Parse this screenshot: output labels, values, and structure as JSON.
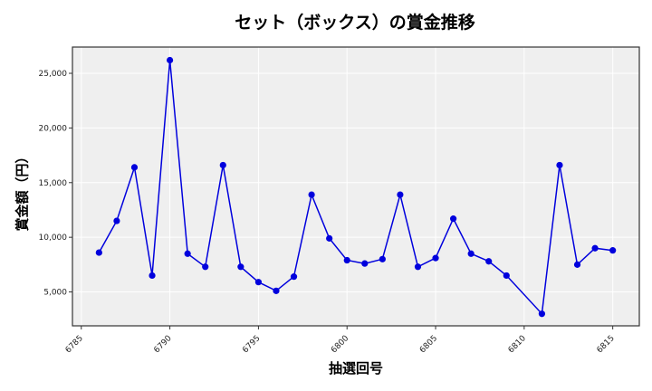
{
  "chart_data": {
    "type": "line",
    "title": "セット（ボックス）の賞金推移",
    "xlabel": "抽選回号",
    "ylabel": "賞金額（円）",
    "xlim": [
      6784.5,
      6816.5
    ],
    "ylim": [
      1900,
      27400
    ],
    "x_ticks": [
      6785,
      6790,
      6795,
      6800,
      6805,
      6810,
      6815
    ],
    "y_ticks": [
      5000,
      10000,
      15000,
      20000,
      25000
    ],
    "y_tick_labels": [
      "5,000",
      "10,000",
      "15,000",
      "20,000",
      "25,000"
    ],
    "grid": true,
    "legend": null,
    "series": [
      {
        "name": "セット（ボックス）",
        "color": "#0000dd",
        "marker": "circle",
        "x": [
          6786,
          6787,
          6788,
          6789,
          6790,
          6791,
          6792,
          6793,
          6794,
          6795,
          6796,
          6797,
          6798,
          6799,
          6800,
          6801,
          6802,
          6803,
          6804,
          6805,
          6806,
          6807,
          6808,
          6809,
          6811,
          6812,
          6813,
          6814,
          6815
        ],
        "values": [
          8600,
          11500,
          16400,
          6500,
          26200,
          8500,
          7300,
          16600,
          7300,
          5900,
          5100,
          6400,
          13900,
          9900,
          7900,
          7600,
          8000,
          13900,
          7300,
          8100,
          11700,
          8500,
          7800,
          6500,
          3000,
          16600,
          7500,
          9000,
          8800
        ]
      }
    ]
  },
  "colors": {
    "plot_background": "#efefef",
    "grid": "#ffffff",
    "line": "#0000dd",
    "axes": "#333333"
  }
}
